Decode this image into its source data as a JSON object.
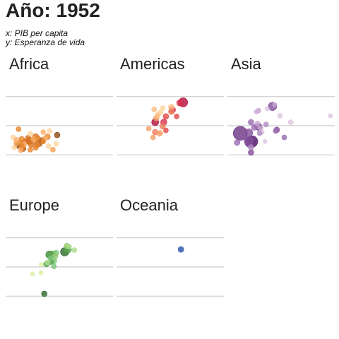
{
  "chart_data": {
    "type": "scatter",
    "title": "Año: 1952",
    "x_caption": "x: PIB per capita",
    "y_caption": "y: Esperanza de vida",
    "xlim": [
      0,
      10
    ],
    "ylim": [
      20,
      80
    ],
    "y_gridlines": [
      30,
      50,
      70
    ],
    "grid": true,
    "facets": [
      {
        "name": "Africa",
        "palette": [
          "#fdd49e",
          "#fdae6b",
          "#f7a453",
          "#e6842a",
          "#d9701f",
          "#b45b13",
          "#8c4a12"
        ],
        "points": [
          {
            "x": 1.2,
            "y": 47.6,
            "s": 3.5,
            "c": 3
          },
          {
            "x": 3.5,
            "y": 45.6,
            "s": 3.5,
            "c": 1
          },
          {
            "x": 4.1,
            "y": 46.4,
            "s": 3.5,
            "c": 0
          },
          {
            "x": 2.3,
            "y": 44.4,
            "s": 3.5,
            "c": 0
          },
          {
            "x": 0.7,
            "y": 42.0,
            "s": 3.5,
            "c": 0
          },
          {
            "x": 1.0,
            "y": 40.4,
            "s": 3.5,
            "c": 1
          },
          {
            "x": 1.5,
            "y": 40.8,
            "s": 4,
            "c": 3
          },
          {
            "x": 2.1,
            "y": 41.6,
            "s": 4,
            "c": 4
          },
          {
            "x": 2.8,
            "y": 42.4,
            "s": 4.5,
            "c": 4
          },
          {
            "x": 3.0,
            "y": 41.2,
            "s": 4,
            "c": 3
          },
          {
            "x": 3.4,
            "y": 40.0,
            "s": 4,
            "c": 5
          },
          {
            "x": 3.7,
            "y": 41.6,
            "s": 3.5,
            "c": 1
          },
          {
            "x": 3.9,
            "y": 42.4,
            "s": 4,
            "c": 3
          },
          {
            "x": 2.6,
            "y": 40.8,
            "s": 4,
            "c": 2
          },
          {
            "x": 2.2,
            "y": 39.6,
            "s": 5,
            "c": 5
          },
          {
            "x": 1.8,
            "y": 38.8,
            "s": 4,
            "c": 4
          },
          {
            "x": 1.4,
            "y": 38.4,
            "s": 3.5,
            "c": 3
          },
          {
            "x": 1.0,
            "y": 38.0,
            "s": 3.5,
            "c": 2
          },
          {
            "x": 1.7,
            "y": 37.2,
            "s": 4,
            "c": 1
          },
          {
            "x": 2.4,
            "y": 37.6,
            "s": 5,
            "c": 4
          },
          {
            "x": 3.1,
            "y": 38.0,
            "s": 5,
            "c": 5
          },
          {
            "x": 2.9,
            "y": 36.8,
            "s": 4,
            "c": 3
          },
          {
            "x": 1.1,
            "y": 36.4,
            "s": 4,
            "c": 6
          },
          {
            "x": 1.5,
            "y": 35.6,
            "s": 4,
            "c": 3
          },
          {
            "x": 0.8,
            "y": 35.2,
            "s": 3.5,
            "c": 0
          },
          {
            "x": 1.6,
            "y": 34.4,
            "s": 4.5,
            "c": 5
          },
          {
            "x": 2.8,
            "y": 34.8,
            "s": 3.5,
            "c": 3
          },
          {
            "x": 4.7,
            "y": 37.6,
            "s": 3.5,
            "c": 0
          },
          {
            "x": 4.8,
            "y": 43.6,
            "s": 4,
            "c": 6
          },
          {
            "x": 4.4,
            "y": 33.6,
            "s": 3.5,
            "c": 2
          },
          {
            "x": 2.3,
            "y": 33.6,
            "s": 3.5,
            "c": 3
          },
          {
            "x": 1.4,
            "y": 33.2,
            "s": 3.5,
            "c": 1
          },
          {
            "x": 4.0,
            "y": 36.0,
            "s": 3.5,
            "c": 0
          },
          {
            "x": 3.5,
            "y": 39.2,
            "s": 3.5,
            "c": 3
          }
        ]
      },
      {
        "name": "Americas",
        "palette": [
          "#fdd49e",
          "#fdbb84",
          "#f4a06a",
          "#ef7b5a",
          "#e34a4a",
          "#d7304a",
          "#b30c3a"
        ],
        "points": [
          {
            "x": 6.2,
            "y": 66.0,
            "s": 6.5,
            "c": 6
          },
          {
            "x": 5.9,
            "y": 65.6,
            "s": 4.5,
            "c": 5
          },
          {
            "x": 5.1,
            "y": 62.8,
            "s": 4,
            "c": 1
          },
          {
            "x": 5.2,
            "y": 60.8,
            "s": 4.5,
            "c": 5
          },
          {
            "x": 4.3,
            "y": 62.0,
            "s": 3.5,
            "c": 0
          },
          {
            "x": 3.5,
            "y": 61.2,
            "s": 3.5,
            "c": 1
          },
          {
            "x": 5.1,
            "y": 59.6,
            "s": 4,
            "c": 3
          },
          {
            "x": 4.1,
            "y": 59.2,
            "s": 3.5,
            "c": 0
          },
          {
            "x": 3.9,
            "y": 58.0,
            "s": 3.5,
            "c": 0
          },
          {
            "x": 3.8,
            "y": 56.8,
            "s": 3.5,
            "c": 1
          },
          {
            "x": 4.6,
            "y": 56.4,
            "s": 4,
            "c": 4
          },
          {
            "x": 5.6,
            "y": 56.4,
            "s": 3.5,
            "c": 4
          },
          {
            "x": 3.7,
            "y": 55.2,
            "s": 4,
            "c": 2
          },
          {
            "x": 3.6,
            "y": 52.4,
            "s": 5,
            "c": 6
          },
          {
            "x": 4.4,
            "y": 52.4,
            "s": 4.5,
            "c": 5
          },
          {
            "x": 4.3,
            "y": 49.6,
            "s": 4,
            "c": 3
          },
          {
            "x": 3.0,
            "y": 48.0,
            "s": 3.5,
            "c": 2
          },
          {
            "x": 4.6,
            "y": 46.8,
            "s": 3.5,
            "c": 4
          },
          {
            "x": 3.6,
            "y": 45.6,
            "s": 4,
            "c": 3
          },
          {
            "x": 4.1,
            "y": 45.2,
            "s": 3.5,
            "c": 1
          },
          {
            "x": 4.0,
            "y": 44.4,
            "s": 3.5,
            "c": 2
          },
          {
            "x": 3.4,
            "y": 42.0,
            "s": 3.5,
            "c": 2
          }
        ]
      },
      {
        "name": "Asia",
        "palette": [
          "#dcc6e0",
          "#c9a8d4",
          "#b18ac2",
          "#9a6bb0",
          "#83509b",
          "#6b3585",
          "#4a1468"
        ],
        "points": [
          {
            "x": 4.4,
            "y": 64.4,
            "s": 3,
            "c": 1
          },
          {
            "x": 4.2,
            "y": 63.2,
            "s": 6,
            "c": 4
          },
          {
            "x": 3.7,
            "y": 61.6,
            "s": 3,
            "c": 0
          },
          {
            "x": 2.9,
            "y": 60.4,
            "s": 3.5,
            "c": 1
          },
          {
            "x": 2.7,
            "y": 59.6,
            "s": 3,
            "c": 1
          },
          {
            "x": 4.9,
            "y": 56.8,
            "s": 3.5,
            "c": 0
          },
          {
            "x": 9.6,
            "y": 56.8,
            "s": 3,
            "c": 0
          },
          {
            "x": 5.9,
            "y": 52.4,
            "s": 3.5,
            "c": 0
          },
          {
            "x": 2.2,
            "y": 52.4,
            "s": 4,
            "c": 3
          },
          {
            "x": 2.8,
            "y": 51.6,
            "s": 3.5,
            "c": 1
          },
          {
            "x": 3.6,
            "y": 50.8,
            "s": 3.5,
            "c": 2
          },
          {
            "x": 2.7,
            "y": 49.6,
            "s": 4,
            "c": 2
          },
          {
            "x": 2.9,
            "y": 49.2,
            "s": 5,
            "c": 5
          },
          {
            "x": 2.5,
            "y": 48.8,
            "s": 4,
            "c": 3
          },
          {
            "x": 3.1,
            "y": 48.4,
            "s": 3.5,
            "c": 1
          },
          {
            "x": 4.6,
            "y": 47.2,
            "s": 4,
            "c": 4
          },
          {
            "x": 4.5,
            "y": 46.4,
            "s": 3.5,
            "c": 3
          },
          {
            "x": 3.2,
            "y": 45.6,
            "s": 3.5,
            "c": 0
          },
          {
            "x": 3.0,
            "y": 44.8,
            "s": 3.5,
            "c": 2
          },
          {
            "x": 2.0,
            "y": 45.2,
            "s": 5.5,
            "c": 4
          },
          {
            "x": 1.2,
            "y": 44.8,
            "s": 10,
            "c": 5
          },
          {
            "x": 5.3,
            "y": 42.0,
            "s": 3.5,
            "c": 3
          },
          {
            "x": 3.5,
            "y": 39.2,
            "s": 3,
            "c": 0
          },
          {
            "x": 2.0,
            "y": 39.6,
            "s": 6.5,
            "c": 4
          },
          {
            "x": 2.3,
            "y": 39.2,
            "s": 8,
            "c": 6
          },
          {
            "x": 2.1,
            "y": 38.8,
            "s": 7.5,
            "c": 5
          },
          {
            "x": 0.9,
            "y": 38.4,
            "s": 4,
            "c": 3
          },
          {
            "x": 2.2,
            "y": 35.2,
            "s": 4,
            "c": 2
          },
          {
            "x": 2.2,
            "y": 31.6,
            "s": 4,
            "c": 4
          }
        ]
      },
      {
        "name": "Europe",
        "palette": [
          "#d9f0a3",
          "#addd8e",
          "#93c96e",
          "#78c679",
          "#5aa54a",
          "#3f8a3a",
          "#2d6a2a"
        ],
        "points": [
          {
            "x": 5.7,
            "y": 64.4,
            "s": 4,
            "c": 2
          },
          {
            "x": 5.9,
            "y": 64.0,
            "s": 3.5,
            "c": 1
          },
          {
            "x": 6.4,
            "y": 61.6,
            "s": 3.5,
            "c": 1
          },
          {
            "x": 5.8,
            "y": 62.0,
            "s": 5,
            "c": 4
          },
          {
            "x": 5.5,
            "y": 60.4,
            "s": 6,
            "c": 6
          },
          {
            "x": 4.7,
            "y": 59.6,
            "s": 4,
            "c": 3
          },
          {
            "x": 4.4,
            "y": 58.8,
            "s": 4.5,
            "c": 4
          },
          {
            "x": 4.1,
            "y": 58.4,
            "s": 5.5,
            "c": 5
          },
          {
            "x": 4.6,
            "y": 57.2,
            "s": 4,
            "c": 2
          },
          {
            "x": 4.2,
            "y": 56.0,
            "s": 3.5,
            "c": 3
          },
          {
            "x": 4.5,
            "y": 54.0,
            "s": 4,
            "c": 3
          },
          {
            "x": 4.2,
            "y": 53.6,
            "s": 4,
            "c": 4
          },
          {
            "x": 3.9,
            "y": 53.2,
            "s": 3.5,
            "c": 1
          },
          {
            "x": 3.8,
            "y": 52.0,
            "s": 4,
            "c": 4
          },
          {
            "x": 3.3,
            "y": 51.6,
            "s": 3,
            "c": 0
          },
          {
            "x": 4.5,
            "y": 50.4,
            "s": 3.5,
            "c": 3
          },
          {
            "x": 3.3,
            "y": 46.0,
            "s": 3,
            "c": 0
          },
          {
            "x": 2.5,
            "y": 45.2,
            "s": 3,
            "c": 0
          },
          {
            "x": 3.6,
            "y": 31.6,
            "s": 4,
            "c": 6
          }
        ]
      },
      {
        "name": "Oceania",
        "palette": [
          "#4a6fb8"
        ],
        "points": [
          {
            "x": 6.0,
            "y": 62.0,
            "s": 4,
            "c": 0
          },
          {
            "x": 6.0,
            "y": 62.0,
            "s": 4,
            "c": 0
          }
        ]
      }
    ]
  }
}
